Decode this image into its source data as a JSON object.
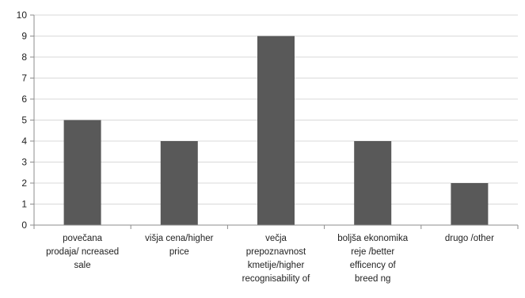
{
  "chart_data": {
    "type": "bar",
    "categories": [
      [
        "povečana",
        "prodaja/ ncreased",
        "sale"
      ],
      [
        "višja cena/higher",
        "price"
      ],
      [
        "večja",
        "prepoznavnost",
        "kmetije/higher",
        "recognisability of"
      ],
      [
        "boljša ekonomika",
        "reje /better",
        "efficency of",
        "breed ng"
      ],
      [
        "drugo /other"
      ]
    ],
    "values": [
      5,
      4,
      9,
      4,
      2
    ],
    "ylim": [
      0,
      10
    ],
    "yticks": [
      "0",
      "1",
      "2",
      "3",
      "4",
      "5",
      "6",
      "7",
      "8",
      "9",
      "10"
    ],
    "title": "",
    "xlabel": "",
    "ylabel": "",
    "grid": true,
    "legend": "none",
    "colors": {
      "bar": "#595959",
      "axis": "#8c8c8c",
      "grid": "#d9d9d9"
    }
  }
}
